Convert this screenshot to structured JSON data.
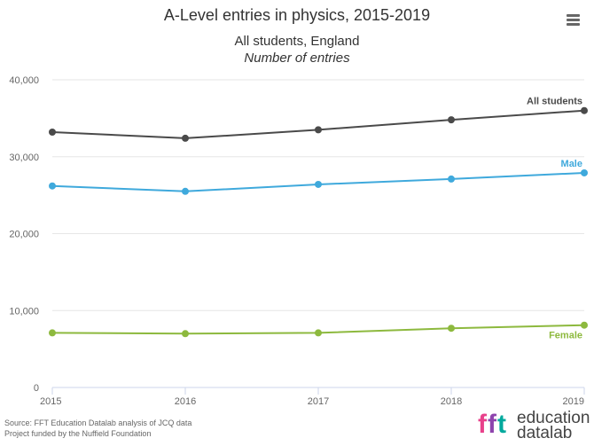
{
  "header": {
    "title": "A-Level entries in physics, 2015-2019",
    "subtitle": "All students, England",
    "subtitle2": "Number of entries"
  },
  "footer": {
    "source": "Source: FFT Education Datalab analysis of JCQ data",
    "funding": "Project funded by the Nuffield Foundation"
  },
  "logo": {
    "mark": "fft",
    "line1": "education",
    "line2": "datalab"
  },
  "menu": {
    "icon": "hamburger-menu-icon"
  },
  "chart_data": {
    "type": "line",
    "title": "A-Level entries in physics, 2015-2019",
    "subtitle": "All students, England",
    "ylabel": "Number of entries",
    "xlabel": "",
    "categories": [
      "2015",
      "2016",
      "2017",
      "2018",
      "2019"
    ],
    "ylim": [
      0,
      40000
    ],
    "yticks": [
      0,
      10000,
      20000,
      30000,
      40000
    ],
    "ytick_labels": [
      "0",
      "10,000",
      "20,000",
      "30,000",
      "40,000"
    ],
    "grid": true,
    "legend": "none (series labelled at line ends)",
    "series": [
      {
        "name": "All students",
        "color": "#4a4a4a",
        "values": [
          33200,
          32400,
          33500,
          34800,
          36000
        ]
      },
      {
        "name": "Male",
        "color": "#3fa9dc",
        "values": [
          26200,
          25500,
          26400,
          27100,
          27900
        ]
      },
      {
        "name": "Female",
        "color": "#8db93e",
        "values": [
          7100,
          7000,
          7100,
          7700,
          8100
        ]
      }
    ]
  }
}
